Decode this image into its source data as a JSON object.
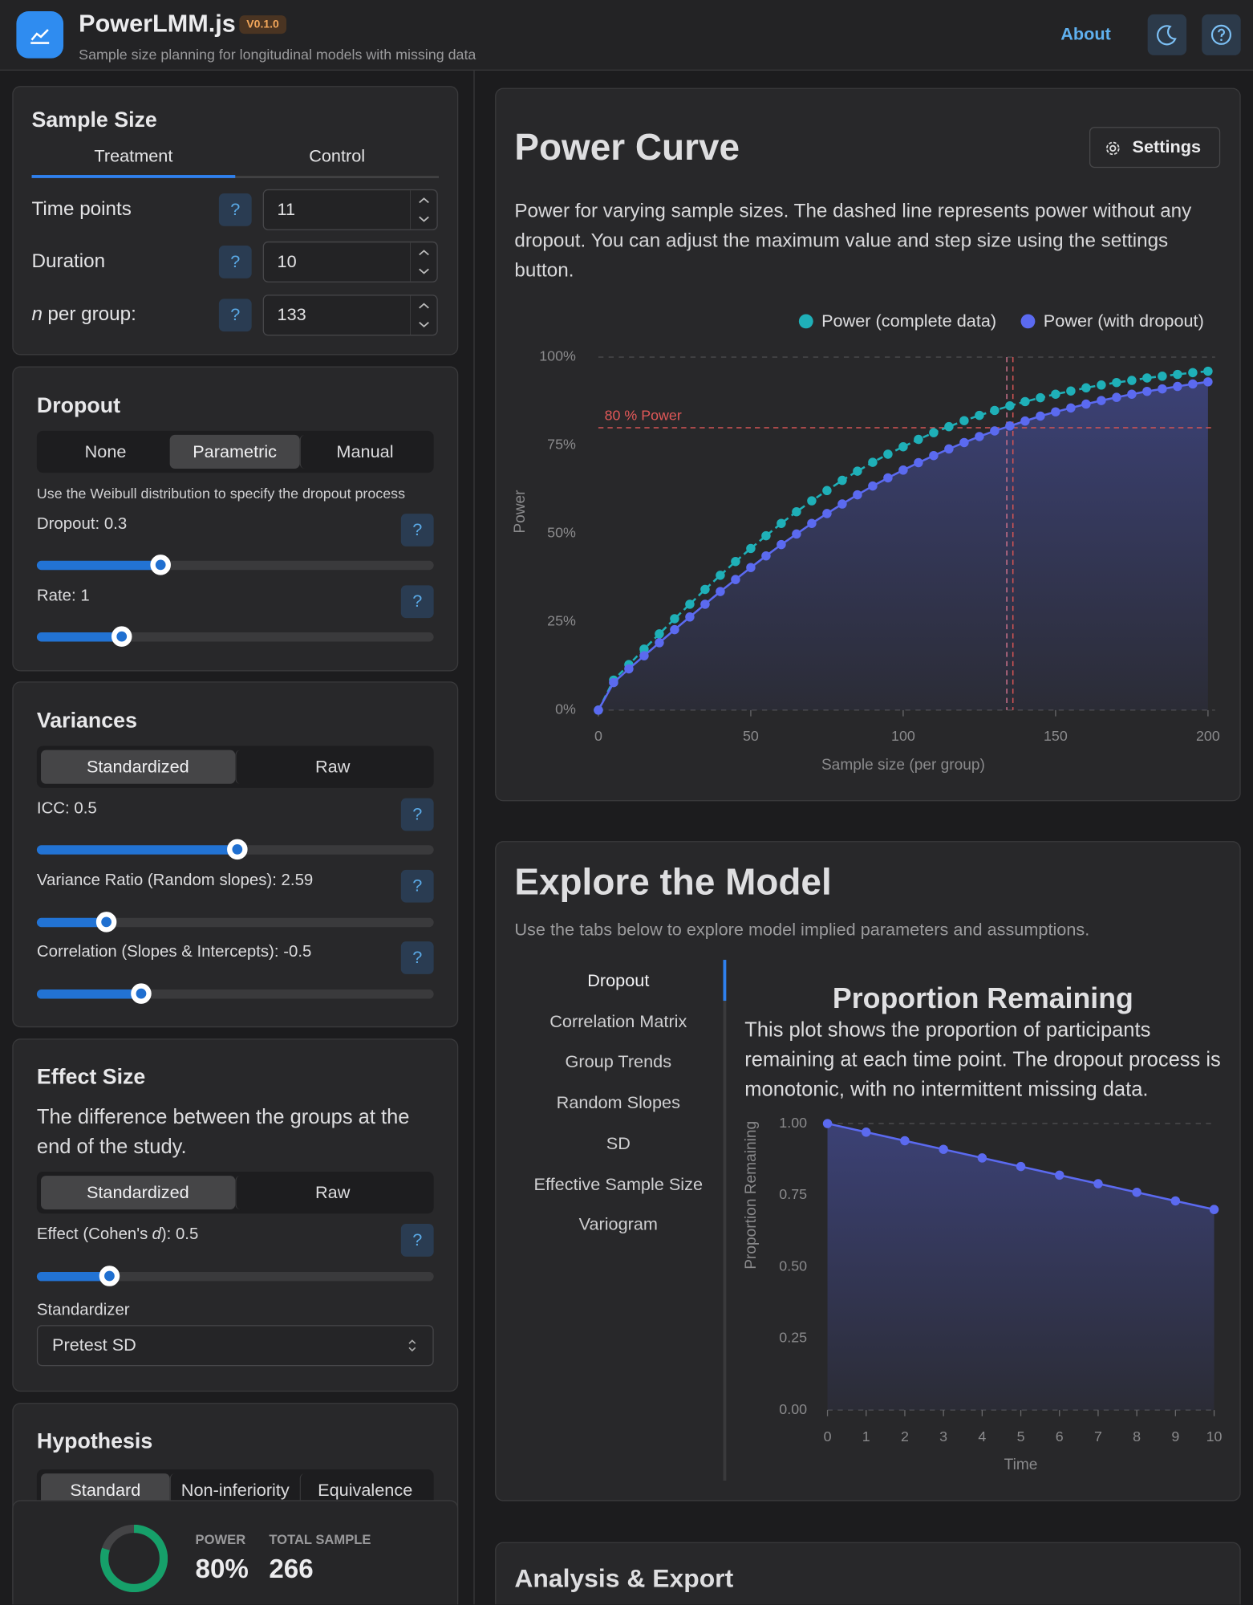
{
  "header": {
    "title": "PowerLMM.js",
    "version": "V0.1.0",
    "subtitle": "Sample size planning for longitudinal models with missing data",
    "nav": "About"
  },
  "help_button": "?",
  "sample_size": {
    "title": "Sample Size",
    "groups": [
      "Treatment",
      "Control"
    ],
    "fields": [
      {
        "label": "Time points",
        "value": 11
      },
      {
        "label": "Duration",
        "value": 10
      },
      {
        "label_italic": "n",
        "label": "per group:",
        "value": 133
      }
    ]
  },
  "dropout": {
    "title": "Dropout",
    "mode": {
      "options": [
        "None",
        "Parametric",
        "Manual"
      ],
      "selected": 1
    },
    "description": "Use the Weibull distribution to specify the dropout process",
    "sliders": [
      "Dropout: 0.3",
      "Rate: 1"
    ]
  },
  "variances": {
    "title": "Variances",
    "mode": {
      "options": [
        "Standardized",
        "Raw"
      ],
      "selected": 0
    },
    "sliders": [
      "ICC: 0.5",
      "Variance Ratio (Random slopes): 2.59",
      "Correlation (Slopes & Intercepts): -0.5"
    ]
  },
  "effect_size": {
    "title": "Effect Size",
    "description": "The difference between the groups at the end of the study.",
    "mode": {
      "options": [
        "Standardized",
        "Raw"
      ],
      "selected": 0
    },
    "slider": [
      "Effect (Cohen's",
      "d",
      "): 0.5"
    ],
    "standardizer_label": "Standardizer",
    "standardizer": "Pretest SD"
  },
  "hypothesis": {
    "title": "Hypothesis",
    "mode": {
      "options": [
        "Standard",
        "Non-inferiority",
        "Equivalence"
      ],
      "selected": 0
    }
  },
  "summary": {
    "power_label": "POWER",
    "power": {
      "value": 80,
      "label": "80%"
    },
    "total_label": "TOTAL SAMPLE",
    "total": 266
  },
  "power_curve": {
    "title": "Power Curve",
    "settings": "Settings",
    "description": "Power for varying sample sizes. The dashed line represents power without any dropout. You can adjust the maximum value and step size using the settings button."
  },
  "explore": {
    "title": "Explore the Model",
    "description": "Use the tabs below to explore model implied parameters and assumptions.",
    "tabs": {
      "options": [
        "Dropout",
        "Correlation Matrix",
        "Group Trends",
        "Random Slopes",
        "SD",
        "Effective Sample Size",
        "Variogram"
      ],
      "selected": 0
    },
    "panel_description": "This plot shows the proportion of participants remaining at each time point. The dropout process is monotonic, with no intermittent missing data."
  },
  "analysis": {
    "title": "Analysis & Export"
  },
  "chart_data": [
    {
      "type": "line",
      "x": [
        0,
        5,
        10,
        15,
        20,
        25,
        30,
        35,
        40,
        45,
        50,
        55,
        60,
        65,
        70,
        75,
        80,
        85,
        90,
        95,
        100,
        105,
        110,
        115,
        120,
        125,
        130,
        135,
        140,
        145,
        150,
        155,
        160,
        165,
        170,
        175,
        180,
        185,
        190,
        195,
        200
      ],
      "series": [
        {
          "name": "Power (complete data)",
          "color": "#1fb0b8",
          "dashed": true,
          "values": [
            0,
            8.5,
            12.9,
            17.3,
            21.6,
            25.9,
            30.0,
            34.2,
            38.2,
            42.1,
            45.8,
            49.4,
            52.9,
            56.2,
            59.3,
            62.2,
            65.1,
            67.7,
            70.2,
            72.5,
            74.6,
            76.7,
            78.6,
            80.3,
            82.0,
            83.5,
            84.9,
            86.2,
            87.4,
            88.5,
            89.5,
            90.4,
            91.3,
            92.1,
            92.8,
            93.4,
            94.1,
            94.6,
            95.1,
            95.6,
            96.0
          ]
        },
        {
          "name": "Power (with dropout)",
          "color": "#5b6af0",
          "area": true,
          "values": [
            0,
            7.8,
            11.7,
            15.4,
            19.1,
            22.8,
            26.4,
            30.0,
            33.6,
            37.0,
            40.4,
            43.7,
            46.9,
            49.9,
            52.9,
            55.7,
            58.4,
            61.0,
            63.5,
            65.8,
            68.0,
            70.1,
            72.1,
            74.0,
            75.8,
            77.5,
            79.1,
            80.5,
            81.9,
            83.3,
            84.5,
            85.6,
            86.7,
            87.7,
            88.6,
            89.5,
            90.3,
            91.0,
            91.7,
            92.4,
            93.0
          ]
        }
      ],
      "xlim": [
        0,
        200
      ],
      "ylim": [
        0,
        100
      ],
      "xticks": [
        0,
        50,
        100,
        150,
        200
      ],
      "yticks": [
        {
          "value": 0,
          "label": "0%"
        },
        {
          "value": 25,
          "label": "25%"
        },
        {
          "value": 50,
          "label": "50%"
        },
        {
          "value": 75,
          "label": "75%"
        },
        {
          "value": 100,
          "label": "100%"
        }
      ],
      "xlabel": "Sample size (per group)",
      "ylabel": "Power",
      "reference_y": 80,
      "reference_label": "80 % Power",
      "reference_x": [
        134,
        136
      ],
      "legend": "top-right"
    },
    {
      "type": "line",
      "title": "Proportion Remaining",
      "x": [
        0,
        1,
        2,
        3,
        4,
        5,
        6,
        7,
        8,
        9,
        10
      ],
      "series": [
        {
          "color": "#5b6af0",
          "area": true,
          "values": [
            1.0,
            0.97,
            0.94,
            0.91,
            0.88,
            0.85,
            0.82,
            0.79,
            0.76,
            0.73,
            0.7
          ]
        }
      ],
      "xlim": [
        0,
        10
      ],
      "ylim": [
        0,
        1
      ],
      "xticks": [
        0,
        1,
        2,
        3,
        4,
        5,
        6,
        7,
        8,
        9,
        10
      ],
      "yticks": [
        {
          "value": 0,
          "label": "0.00"
        },
        {
          "value": 0.25,
          "label": "0.25"
        },
        {
          "value": 0.5,
          "label": "0.50"
        },
        {
          "value": 0.75,
          "label": "0.75"
        },
        {
          "value": 1,
          "label": "1.00"
        }
      ],
      "xlabel": "Time",
      "ylabel": "Proportion Remaining"
    }
  ]
}
